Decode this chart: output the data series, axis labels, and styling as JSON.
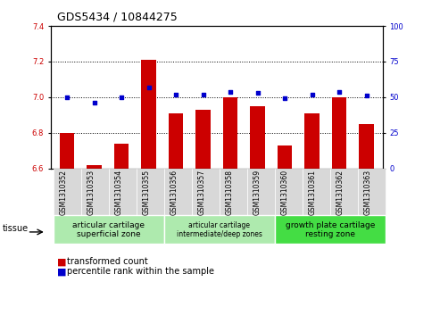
{
  "title": "GDS5434 / 10844275",
  "samples": [
    "GSM1310352",
    "GSM1310353",
    "GSM1310354",
    "GSM1310355",
    "GSM1310356",
    "GSM1310357",
    "GSM1310358",
    "GSM1310359",
    "GSM1310360",
    "GSM1310361",
    "GSM1310362",
    "GSM1310363"
  ],
  "bar_values": [
    6.8,
    6.62,
    6.74,
    7.21,
    6.91,
    6.93,
    7.0,
    6.95,
    6.73,
    6.91,
    7.0,
    6.85
  ],
  "blue_values": [
    50,
    46,
    50,
    57,
    52,
    52,
    54,
    53,
    49,
    52,
    54,
    51
  ],
  "ylim_left": [
    6.6,
    7.4
  ],
  "ylim_right": [
    0,
    100
  ],
  "yticks_left": [
    6.6,
    6.8,
    7.0,
    7.2,
    7.4
  ],
  "yticks_right": [
    0,
    25,
    50,
    75,
    100
  ],
  "bar_color": "#cc0000",
  "dot_color": "#0000cc",
  "tissue_groups": [
    {
      "label": "articular cartilage\nsuperficial zone",
      "start": 0,
      "end": 4,
      "color": "#aeeaae"
    },
    {
      "label": "articular cartilage\nintermediate/deep zones",
      "start": 4,
      "end": 8,
      "color": "#aeeaae"
    },
    {
      "label": "growth plate cartilage\nresting zone",
      "start": 8,
      "end": 12,
      "color": "#44dd44"
    }
  ],
  "tissue_label": "tissue",
  "legend_bar_label": "transformed count",
  "legend_dot_label": "percentile rank within the sample",
  "title_fontsize": 9,
  "tick_fontsize": 6,
  "sample_fontsize": 5.5,
  "tissue_fontsize": 6.5,
  "tissue_fontsize_small": 5.5,
  "legend_fontsize": 7
}
